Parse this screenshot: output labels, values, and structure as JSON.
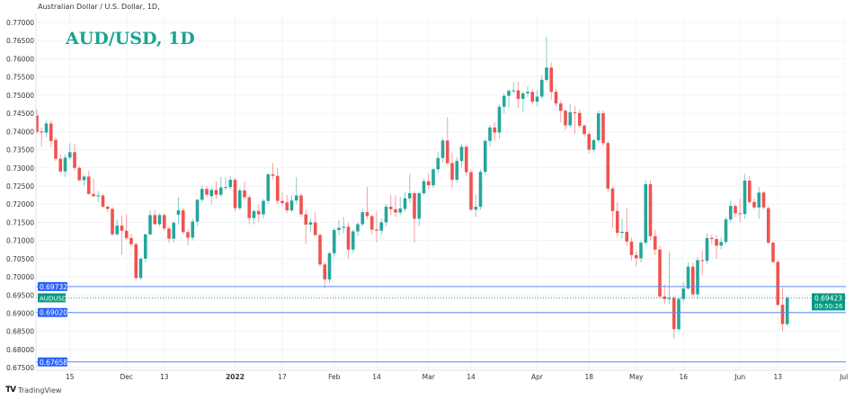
{
  "header": {
    "symbol_description": "Australian Dollar / U.S. Dollar, 1D,"
  },
  "annotation_title": "AUD/USD, 1D",
  "footer": {
    "brand": "TradingView",
    "logo_icon": "tradingview-logo-icon"
  },
  "colors": {
    "up": "#26a69a",
    "down": "#ef5350",
    "level_line": "#5b8def",
    "level_label": "#2962ff",
    "last_price": "#089981",
    "grid": "#f0f3fa"
  },
  "chart_data": {
    "type": "candlestick",
    "title": "AUD/USD, 1D",
    "symbol": "AUDUSD",
    "ylim": [
      0.675,
      0.772
    ],
    "grid": true,
    "y_ticks": [
      "0.77000",
      "0.76500",
      "0.76000",
      "0.75500",
      "0.75000",
      "0.74500",
      "0.74000",
      "0.73500",
      "0.73000",
      "0.72500",
      "0.72000",
      "0.71500",
      "0.71000",
      "0.70500",
      "0.70000",
      "0.69500",
      "0.69000",
      "0.68500",
      "0.68000",
      "0.67500"
    ],
    "x_ticks": [
      {
        "label": "15",
        "date": "2021-11-15"
      },
      {
        "label": "Dec",
        "date": "2021-12-01"
      },
      {
        "label": "13",
        "date": "2021-12-13"
      },
      {
        "label": "2022",
        "date": "2022-01-03",
        "bold": true
      },
      {
        "label": "17",
        "date": "2022-01-17"
      },
      {
        "label": "Feb",
        "date": "2022-02-01"
      },
      {
        "label": "14",
        "date": "2022-02-14"
      },
      {
        "label": "Mar",
        "date": "2022-03-01"
      },
      {
        "label": "14",
        "date": "2022-03-14"
      },
      {
        "label": "Apr",
        "date": "2022-04-01"
      },
      {
        "label": "18",
        "date": "2022-04-18"
      },
      {
        "label": "May",
        "date": "2022-05-02"
      },
      {
        "label": "16",
        "date": "2022-05-16"
      },
      {
        "label": "Jun",
        "date": "2022-06-01"
      },
      {
        "label": "13",
        "date": "2022-06-13"
      },
      {
        "label": "Jul",
        "date": "2022-07-01"
      }
    ],
    "levels": [
      {
        "value": 0.69732,
        "label": "0.69732"
      },
      {
        "value": 0.6902,
        "label": "0.69020"
      },
      {
        "value": 0.67658,
        "label": "0.67658"
      }
    ],
    "last_price": {
      "value": 0.69423,
      "label": "0.69423",
      "countdown": "09:50:26",
      "symbol_label": "AUDUSD"
    },
    "candles_columns": [
      "date",
      "open",
      "high",
      "low",
      "close"
    ],
    "candles": [
      [
        "2021-11-04",
        0.7444,
        0.746,
        0.7395,
        0.7399
      ],
      [
        "2021-11-05",
        0.74,
        0.7411,
        0.7358,
        0.7397
      ],
      [
        "2021-11-08",
        0.7397,
        0.743,
        0.7384,
        0.7422
      ],
      [
        "2021-11-09",
        0.7422,
        0.743,
        0.7357,
        0.7374
      ],
      [
        "2021-11-10",
        0.7377,
        0.7384,
        0.7318,
        0.7325
      ],
      [
        "2021-11-11",
        0.7325,
        0.7337,
        0.7288,
        0.729
      ],
      [
        "2021-11-12",
        0.729,
        0.7337,
        0.7275,
        0.7328
      ],
      [
        "2021-11-15",
        0.7328,
        0.7368,
        0.7322,
        0.7343
      ],
      [
        "2021-11-16",
        0.7343,
        0.7366,
        0.7292,
        0.73
      ],
      [
        "2021-11-17",
        0.73,
        0.7305,
        0.7262,
        0.7266
      ],
      [
        "2021-11-18",
        0.7266,
        0.728,
        0.7251,
        0.7276
      ],
      [
        "2021-11-19",
        0.7276,
        0.7292,
        0.7226,
        0.7228
      ],
      [
        "2021-11-22",
        0.7228,
        0.7271,
        0.722,
        0.7222
      ],
      [
        "2021-11-23",
        0.7222,
        0.7236,
        0.7205,
        0.7224
      ],
      [
        "2021-11-24",
        0.7224,
        0.7228,
        0.719,
        0.7193
      ],
      [
        "2021-11-25",
        0.7193,
        0.7197,
        0.7178,
        0.7187
      ],
      [
        "2021-11-26",
        0.7187,
        0.7192,
        0.7112,
        0.7117
      ],
      [
        "2021-11-29",
        0.7117,
        0.7158,
        0.7112,
        0.7141
      ],
      [
        "2021-11-30",
        0.7141,
        0.7168,
        0.7061,
        0.7127
      ],
      [
        "2021-12-01",
        0.7127,
        0.7172,
        0.7102,
        0.7107
      ],
      [
        "2021-12-02",
        0.7107,
        0.7119,
        0.7082,
        0.709
      ],
      [
        "2021-12-03",
        0.709,
        0.7095,
        0.6993,
        0.6997
      ],
      [
        "2021-12-06",
        0.6997,
        0.7053,
        0.6992,
        0.705
      ],
      [
        "2021-12-07",
        0.705,
        0.7119,
        0.704,
        0.7117
      ],
      [
        "2021-12-08",
        0.7117,
        0.7183,
        0.7115,
        0.717
      ],
      [
        "2021-12-09",
        0.717,
        0.7183,
        0.7143,
        0.7145
      ],
      [
        "2021-12-10",
        0.7145,
        0.7175,
        0.7138,
        0.717
      ],
      [
        "2021-12-13",
        0.717,
        0.7175,
        0.7128,
        0.7133
      ],
      [
        "2021-12-14",
        0.7133,
        0.7138,
        0.7093,
        0.7105
      ],
      [
        "2021-12-15",
        0.7105,
        0.7153,
        0.7095,
        0.7149
      ],
      [
        "2021-12-16",
        0.7171,
        0.7219,
        0.7144,
        0.7183
      ],
      [
        "2021-12-17",
        0.7183,
        0.719,
        0.7118,
        0.7123
      ],
      [
        "2021-12-20",
        0.7123,
        0.713,
        0.7086,
        0.7108
      ],
      [
        "2021-12-21",
        0.7108,
        0.716,
        0.71,
        0.7152
      ],
      [
        "2021-12-22",
        0.7152,
        0.7215,
        0.714,
        0.7212
      ],
      [
        "2021-12-23",
        0.7212,
        0.7253,
        0.7205,
        0.7242
      ],
      [
        "2021-12-24",
        0.7242,
        0.725,
        0.722,
        0.7226
      ],
      [
        "2021-12-27",
        0.7222,
        0.7245,
        0.72,
        0.7239
      ],
      [
        "2021-12-28",
        0.7239,
        0.7262,
        0.7215,
        0.7226
      ],
      [
        "2021-12-29",
        0.7226,
        0.7275,
        0.722,
        0.7246
      ],
      [
        "2021-12-30",
        0.7246,
        0.7275,
        0.724,
        0.7247
      ],
      [
        "2021-12-31",
        0.7247,
        0.7277,
        0.724,
        0.7267
      ],
      [
        "2022-01-03",
        0.7267,
        0.7272,
        0.718,
        0.7189
      ],
      [
        "2022-01-04",
        0.7189,
        0.7245,
        0.7183,
        0.7238
      ],
      [
        "2022-01-05",
        0.7238,
        0.7262,
        0.7212,
        0.7219
      ],
      [
        "2022-01-06",
        0.7219,
        0.7225,
        0.7145,
        0.7162
      ],
      [
        "2022-01-07",
        0.7162,
        0.7185,
        0.7145,
        0.7181
      ],
      [
        "2022-01-10",
        0.7181,
        0.7198,
        0.715,
        0.7172
      ],
      [
        "2022-01-11",
        0.7172,
        0.7215,
        0.716,
        0.7209
      ],
      [
        "2022-01-12",
        0.7209,
        0.7285,
        0.72,
        0.7282
      ],
      [
        "2022-01-13",
        0.7282,
        0.7313,
        0.7268,
        0.7278
      ],
      [
        "2022-01-14",
        0.7278,
        0.73,
        0.72,
        0.7209
      ],
      [
        "2022-01-17",
        0.7209,
        0.7232,
        0.7195,
        0.7203
      ],
      [
        "2022-01-18",
        0.7205,
        0.7225,
        0.7175,
        0.7183
      ],
      [
        "2022-01-19",
        0.7183,
        0.7225,
        0.7178,
        0.721
      ],
      [
        "2022-01-20",
        0.721,
        0.7275,
        0.72,
        0.7224
      ],
      [
        "2022-01-21",
        0.7224,
        0.723,
        0.7165,
        0.7172
      ],
      [
        "2022-01-24",
        0.7172,
        0.7185,
        0.709,
        0.7144
      ],
      [
        "2022-01-25",
        0.7144,
        0.716,
        0.7122,
        0.715
      ],
      [
        "2022-01-26",
        0.715,
        0.7178,
        0.711,
        0.7115
      ],
      [
        "2022-01-27",
        0.7115,
        0.712,
        0.7028,
        0.7034
      ],
      [
        "2022-01-28",
        0.7034,
        0.704,
        0.6968,
        0.6993
      ],
      [
        "2022-01-31",
        0.6993,
        0.707,
        0.6983,
        0.7065
      ],
      [
        "2022-02-01",
        0.7065,
        0.7135,
        0.7055,
        0.7129
      ],
      [
        "2022-02-02",
        0.7129,
        0.7157,
        0.7115,
        0.7135
      ],
      [
        "2022-02-03",
        0.7135,
        0.7165,
        0.712,
        0.7138
      ],
      [
        "2022-02-04",
        0.7138,
        0.715,
        0.705,
        0.7075
      ],
      [
        "2022-02-07",
        0.7075,
        0.713,
        0.7065,
        0.7125
      ],
      [
        "2022-02-08",
        0.7125,
        0.715,
        0.7112,
        0.7145
      ],
      [
        "2022-02-09",
        0.7145,
        0.7185,
        0.714,
        0.7178
      ],
      [
        "2022-02-10",
        0.7178,
        0.7247,
        0.716,
        0.7167
      ],
      [
        "2022-02-11",
        0.7167,
        0.7172,
        0.7118,
        0.713
      ],
      [
        "2022-02-14",
        0.713,
        0.718,
        0.7095,
        0.7127
      ],
      [
        "2022-02-15",
        0.7127,
        0.716,
        0.7115,
        0.715
      ],
      [
        "2022-02-16",
        0.715,
        0.72,
        0.714,
        0.7193
      ],
      [
        "2022-02-17",
        0.7193,
        0.7225,
        0.717,
        0.7186
      ],
      [
        "2022-02-18",
        0.7186,
        0.7225,
        0.7165,
        0.7177
      ],
      [
        "2022-02-21",
        0.7177,
        0.722,
        0.717,
        0.7188
      ],
      [
        "2022-02-22",
        0.7187,
        0.7233,
        0.718,
        0.7216
      ],
      [
        "2022-02-23",
        0.7216,
        0.7283,
        0.7205,
        0.723
      ],
      [
        "2022-02-24",
        0.723,
        0.7235,
        0.7094,
        0.716
      ],
      [
        "2022-02-25",
        0.716,
        0.7235,
        0.714,
        0.723
      ],
      [
        "2022-02-28",
        0.723,
        0.727,
        0.7225,
        0.7263
      ],
      [
        "2022-03-01",
        0.7263,
        0.7285,
        0.724,
        0.7252
      ],
      [
        "2022-03-02",
        0.7252,
        0.73,
        0.7245,
        0.7296
      ],
      [
        "2022-03-03",
        0.7296,
        0.7345,
        0.7285,
        0.7327
      ],
      [
        "2022-03-04",
        0.7327,
        0.7382,
        0.7315,
        0.7375
      ],
      [
        "2022-03-07",
        0.7375,
        0.744,
        0.7308,
        0.7313
      ],
      [
        "2022-03-08",
        0.7313,
        0.7342,
        0.7245,
        0.7267
      ],
      [
        "2022-03-09",
        0.7267,
        0.733,
        0.726,
        0.7319
      ],
      [
        "2022-03-10",
        0.7319,
        0.7365,
        0.73,
        0.7358
      ],
      [
        "2022-03-11",
        0.7358,
        0.7362,
        0.7278,
        0.7288
      ],
      [
        "2022-03-14",
        0.7288,
        0.7295,
        0.718,
        0.7185
      ],
      [
        "2022-03-15",
        0.7185,
        0.7225,
        0.7165,
        0.7193
      ],
      [
        "2022-03-16",
        0.7193,
        0.7295,
        0.7185,
        0.7289
      ],
      [
        "2022-03-17",
        0.7289,
        0.738,
        0.728,
        0.7374
      ],
      [
        "2022-03-18",
        0.7374,
        0.7418,
        0.736,
        0.7411
      ],
      [
        "2022-03-21",
        0.7411,
        0.7425,
        0.7375,
        0.7397
      ],
      [
        "2022-03-22",
        0.7397,
        0.7475,
        0.738,
        0.7468
      ],
      [
        "2022-03-23",
        0.7468,
        0.7505,
        0.745,
        0.7498
      ],
      [
        "2022-03-24",
        0.7498,
        0.7517,
        0.7465,
        0.7512
      ],
      [
        "2022-03-25",
        0.7512,
        0.7535,
        0.7505,
        0.7513
      ],
      [
        "2022-03-28",
        0.7513,
        0.7537,
        0.7465,
        0.749
      ],
      [
        "2022-03-29",
        0.749,
        0.751,
        0.7455,
        0.7505
      ],
      [
        "2022-03-30",
        0.7505,
        0.7525,
        0.7495,
        0.7509
      ],
      [
        "2022-03-31",
        0.7509,
        0.7517,
        0.7475,
        0.7482
      ],
      [
        "2022-04-01",
        0.7482,
        0.7513,
        0.747,
        0.7496
      ],
      [
        "2022-04-04",
        0.7496,
        0.7555,
        0.749,
        0.7542
      ],
      [
        "2022-04-05",
        0.7542,
        0.766,
        0.7535,
        0.7576
      ],
      [
        "2022-04-06",
        0.7576,
        0.759,
        0.7488,
        0.7509
      ],
      [
        "2022-04-07",
        0.7509,
        0.7517,
        0.747,
        0.7477
      ],
      [
        "2022-04-08",
        0.7477,
        0.7485,
        0.7426,
        0.7457
      ],
      [
        "2022-04-11",
        0.7457,
        0.7462,
        0.7405,
        0.7417
      ],
      [
        "2022-04-12",
        0.7417,
        0.7475,
        0.741,
        0.7453
      ],
      [
        "2022-04-13",
        0.7453,
        0.747,
        0.7395,
        0.7452
      ],
      [
        "2022-04-14",
        0.7451,
        0.746,
        0.741,
        0.7416
      ],
      [
        "2022-04-15",
        0.7416,
        0.742,
        0.7385,
        0.7393
      ],
      [
        "2022-04-18",
        0.7393,
        0.74,
        0.734,
        0.735
      ],
      [
        "2022-04-19",
        0.735,
        0.738,
        0.7342,
        0.7376
      ],
      [
        "2022-04-20",
        0.7376,
        0.7458,
        0.737,
        0.745
      ],
      [
        "2022-04-21",
        0.745,
        0.7458,
        0.736,
        0.7368
      ],
      [
        "2022-04-22",
        0.7368,
        0.7375,
        0.7235,
        0.7243
      ],
      [
        "2022-04-25",
        0.7243,
        0.725,
        0.7135,
        0.7181
      ],
      [
        "2022-04-26",
        0.7181,
        0.7205,
        0.711,
        0.7121
      ],
      [
        "2022-04-27",
        0.7121,
        0.716,
        0.7105,
        0.7124
      ],
      [
        "2022-04-28",
        0.7124,
        0.719,
        0.7085,
        0.7097
      ],
      [
        "2022-04-29",
        0.7097,
        0.7108,
        0.7045,
        0.706
      ],
      [
        "2022-05-02",
        0.706,
        0.707,
        0.703,
        0.7051
      ],
      [
        "2022-05-03",
        0.7051,
        0.71,
        0.704,
        0.7094
      ],
      [
        "2022-05-04",
        0.7094,
        0.7265,
        0.7088,
        0.7255
      ],
      [
        "2022-05-05",
        0.7255,
        0.7265,
        0.71,
        0.7112
      ],
      [
        "2022-05-06",
        0.7112,
        0.713,
        0.706,
        0.7075
      ],
      [
        "2022-05-09",
        0.7075,
        0.7085,
        0.6942,
        0.6946
      ],
      [
        "2022-05-10",
        0.6946,
        0.698,
        0.6925,
        0.6939
      ],
      [
        "2022-05-11",
        0.6939,
        0.707,
        0.6925,
        0.6942
      ],
      [
        "2022-05-12",
        0.6942,
        0.6948,
        0.683,
        0.6856
      ],
      [
        "2022-05-13",
        0.6856,
        0.6945,
        0.685,
        0.6939
      ],
      [
        "2022-05-16",
        0.6939,
        0.6985,
        0.693,
        0.6968
      ],
      [
        "2022-05-17",
        0.6968,
        0.704,
        0.6965,
        0.7028
      ],
      [
        "2022-05-18",
        0.7028,
        0.704,
        0.6945,
        0.6952
      ],
      [
        "2022-05-19",
        0.6952,
        0.7055,
        0.694,
        0.7046
      ],
      [
        "2022-05-20",
        0.7046,
        0.7072,
        0.7005,
        0.7044
      ],
      [
        "2022-05-23",
        0.7044,
        0.712,
        0.7035,
        0.7107
      ],
      [
        "2022-05-24",
        0.7107,
        0.7117,
        0.709,
        0.7104
      ],
      [
        "2022-05-25",
        0.7104,
        0.7115,
        0.705,
        0.7086
      ],
      [
        "2022-05-26",
        0.7086,
        0.711,
        0.7075,
        0.7096
      ],
      [
        "2022-05-27",
        0.7096,
        0.7165,
        0.709,
        0.7158
      ],
      [
        "2022-05-30",
        0.7158,
        0.721,
        0.715,
        0.7195
      ],
      [
        "2022-05-31",
        0.7195,
        0.72,
        0.7165,
        0.7175
      ],
      [
        "2022-06-01",
        0.7175,
        0.7215,
        0.715,
        0.7173
      ],
      [
        "2022-06-02",
        0.7173,
        0.7283,
        0.716,
        0.7265
      ],
      [
        "2022-06-03",
        0.7265,
        0.7277,
        0.72,
        0.7206
      ],
      [
        "2022-06-06",
        0.7206,
        0.7215,
        0.7185,
        0.7191
      ],
      [
        "2022-06-07",
        0.7191,
        0.7247,
        0.716,
        0.7232
      ],
      [
        "2022-06-08",
        0.7232,
        0.7237,
        0.7185,
        0.7191
      ],
      [
        "2022-06-09",
        0.7189,
        0.7195,
        0.709,
        0.7094
      ],
      [
        "2022-06-10",
        0.7094,
        0.7098,
        0.7038,
        0.7041
      ],
      [
        "2022-06-13",
        0.7041,
        0.7048,
        0.692,
        0.6923
      ],
      [
        "2022-06-14",
        0.6923,
        0.697,
        0.685,
        0.687
      ],
      [
        "2022-06-15",
        0.687,
        0.6948,
        0.6865,
        0.6942
      ]
    ]
  }
}
